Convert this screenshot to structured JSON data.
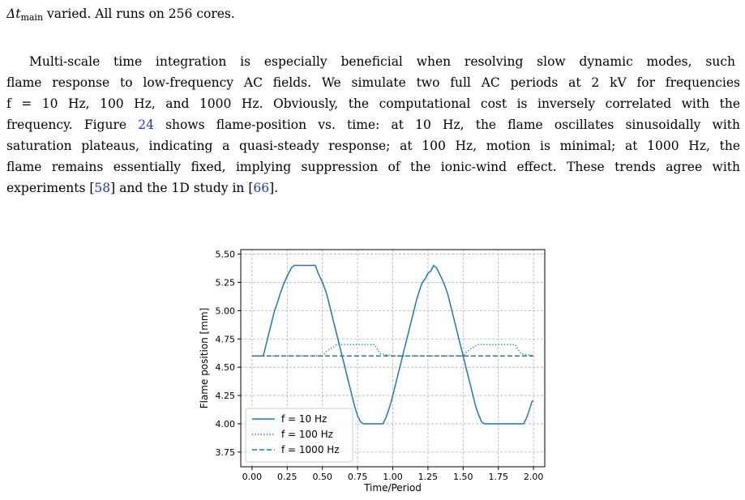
{
  "paragraph_top": {
    "symbol": "Δt",
    "subscript": "main",
    "rest": " varied. All runs on 256 cores."
  },
  "paragraph_main": {
    "line1": "Multi-scale time integration is especially beneficial when resolving slow dynamic modes, such as",
    "line2": "flame response to low-frequency AC fields. We simulate two full AC periods at 2 kV for frequencies",
    "line3": "f = 10 Hz, 100 Hz, and 1000 Hz. Obviously, the computational cost is inversely correlated with the",
    "line4_pre": "frequency. Figure ",
    "figure_ref": "24",
    "line4_post": " shows flame-position vs. time: at 10 Hz, the flame oscillates sinusoidally with",
    "line5": "saturation plateaus, indicating a quasi-steady response; at 100 Hz, motion is minimal; at 1000 Hz, the",
    "line6": "flame remains essentially fixed, implying suppression of the ionic-wind effect. These trends agree with",
    "line7_pre": "experiments [",
    "cite1": "58",
    "line7_mid": "] and the 1D study in [",
    "cite2": "66",
    "line7_post": "]."
  },
  "chart_data": {
    "type": "line",
    "xlabel": "Time/Period",
    "ylabel": "Flame position [mm]",
    "xlim": [
      -0.08,
      2.08
    ],
    "ylim": [
      3.62,
      5.54
    ],
    "xticks": [
      "0.00",
      "0.25",
      "0.50",
      "0.75",
      "1.00",
      "1.25",
      "1.50",
      "1.75",
      "2.00"
    ],
    "yticks": [
      "3.75",
      "4.00",
      "4.25",
      "4.50",
      "4.75",
      "5.00",
      "5.25",
      "5.50"
    ],
    "grid": true,
    "legend_position": "lower-left",
    "color": "#1f77b4",
    "series": [
      {
        "name": "f = 10 Hz",
        "style": "solid",
        "x": [
          0.0,
          0.08,
          0.1,
          0.12,
          0.14,
          0.16,
          0.18,
          0.2,
          0.22,
          0.24,
          0.26,
          0.28,
          0.3,
          0.45,
          0.47,
          0.49,
          0.51,
          0.53,
          0.55,
          0.57,
          0.59,
          0.61,
          0.63,
          0.65,
          0.67,
          0.69,
          0.71,
          0.73,
          0.75,
          0.77,
          0.79,
          0.8,
          0.93,
          0.95,
          0.97,
          0.99,
          1.01,
          1.03,
          1.05,
          1.07,
          1.09,
          1.11,
          1.13,
          1.15,
          1.17,
          1.19,
          1.21,
          1.23,
          1.25,
          1.27,
          1.29,
          1.31,
          1.33,
          1.35,
          1.37,
          1.39,
          1.41,
          1.43,
          1.45,
          1.47,
          1.49,
          1.51,
          1.53,
          1.55,
          1.57,
          1.59,
          1.61,
          1.63,
          1.65,
          1.67,
          1.69,
          1.71,
          1.73,
          1.75,
          1.77,
          1.79,
          1.8,
          1.93,
          1.95,
          1.97,
          1.99,
          2.0
        ],
        "y": [
          4.6,
          4.6,
          4.7,
          4.8,
          4.9,
          5.0,
          5.07,
          5.15,
          5.22,
          5.28,
          5.33,
          5.38,
          5.4,
          5.4,
          5.33,
          5.28,
          5.22,
          5.15,
          5.05,
          4.95,
          4.85,
          4.75,
          4.65,
          4.55,
          4.45,
          4.35,
          4.25,
          4.15,
          4.07,
          4.02,
          4.0,
          4.0,
          4.0,
          4.05,
          4.12,
          4.2,
          4.3,
          4.4,
          4.5,
          4.6,
          4.7,
          4.8,
          4.9,
          5.0,
          5.1,
          5.18,
          5.25,
          5.28,
          5.33,
          5.35,
          5.4,
          5.38,
          5.33,
          5.28,
          5.22,
          5.15,
          5.05,
          4.95,
          4.85,
          4.75,
          4.65,
          4.55,
          4.45,
          4.35,
          4.25,
          4.15,
          4.08,
          4.02,
          4.0,
          4.0,
          4.0,
          4.0,
          4.0,
          4.0,
          4.0,
          4.0,
          4.0,
          4.0,
          4.05,
          4.12,
          4.2,
          4.2
        ]
      },
      {
        "name": "f = 100 Hz",
        "style": "dotted",
        "x": [
          0.0,
          0.5,
          0.52,
          0.55,
          0.58,
          0.6,
          0.87,
          0.89,
          0.91,
          1.0,
          1.5,
          1.52,
          1.55,
          1.58,
          1.6,
          1.87,
          1.89,
          1.91,
          2.0
        ],
        "y": [
          4.6,
          4.6,
          4.63,
          4.66,
          4.68,
          4.7,
          4.7,
          4.66,
          4.62,
          4.6,
          4.6,
          4.63,
          4.66,
          4.68,
          4.7,
          4.7,
          4.66,
          4.62,
          4.6
        ]
      },
      {
        "name": "f = 1000 Hz",
        "style": "dashed",
        "x": [
          0.0,
          2.0
        ],
        "y": [
          4.6,
          4.6
        ]
      }
    ]
  }
}
